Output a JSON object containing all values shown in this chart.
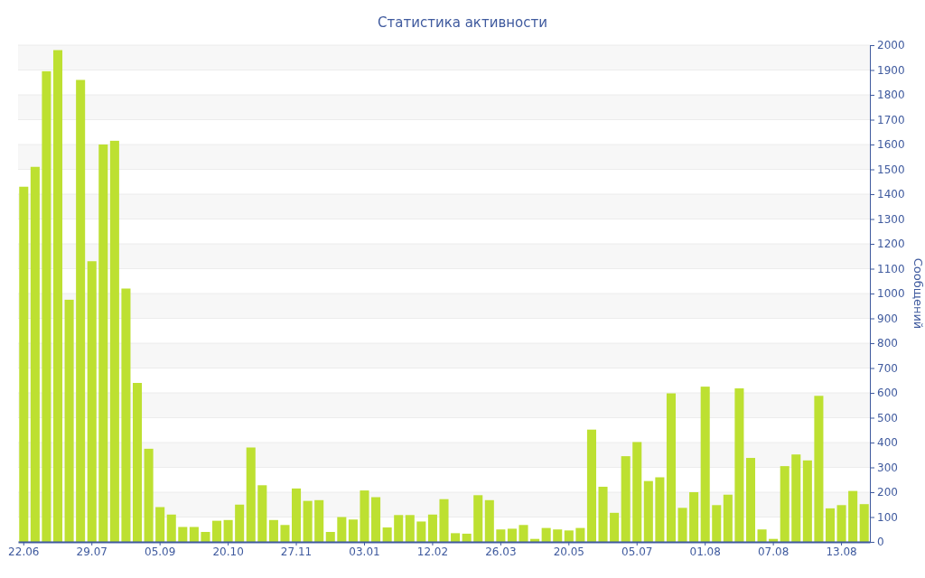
{
  "chart_data": {
    "type": "bar",
    "title": "Статистика активности",
    "ylabel": "Сообщений",
    "categories": [
      "22.06",
      null,
      null,
      null,
      null,
      null,
      "29.07",
      null,
      null,
      null,
      null,
      null,
      "05.09",
      null,
      null,
      null,
      null,
      null,
      "20.10",
      null,
      null,
      null,
      null,
      null,
      "27.11",
      null,
      null,
      null,
      null,
      null,
      "03.01",
      null,
      null,
      null,
      null,
      null,
      "12.02",
      null,
      null,
      null,
      null,
      null,
      "26.03",
      null,
      null,
      null,
      null,
      null,
      "20.05",
      null,
      null,
      null,
      null,
      null,
      "05.07",
      null,
      null,
      null,
      null,
      null,
      "01.08",
      null,
      null,
      null,
      null,
      null,
      "07.08",
      null,
      null,
      null,
      null,
      null,
      "13.08",
      null,
      null
    ],
    "values": [
      1430,
      1510,
      1895,
      1980,
      975,
      1860,
      1130,
      1600,
      1615,
      1020,
      640,
      375,
      140,
      110,
      60,
      60,
      40,
      85,
      88,
      150,
      380,
      228,
      88,
      68,
      215,
      165,
      168,
      40,
      100,
      90,
      207,
      180,
      58,
      108,
      108,
      82,
      110,
      172,
      35,
      33,
      188,
      168,
      50,
      53,
      68,
      12,
      56,
      50,
      46,
      56,
      452,
      222,
      117,
      345,
      402,
      245,
      260,
      598,
      137,
      200,
      625,
      148,
      190,
      618,
      338,
      50,
      12,
      305,
      352,
      328,
      588,
      135,
      148,
      205,
      152
    ],
    "color": "#bde031",
    "ylim": [
      0,
      2000
    ],
    "yticks": [
      0,
      100,
      200,
      300,
      400,
      500,
      600,
      700,
      800,
      900,
      1000,
      1100,
      1200,
      1300,
      1400,
      1500,
      1600,
      1700,
      1800,
      1900,
      2000
    ],
    "grid": "y"
  }
}
